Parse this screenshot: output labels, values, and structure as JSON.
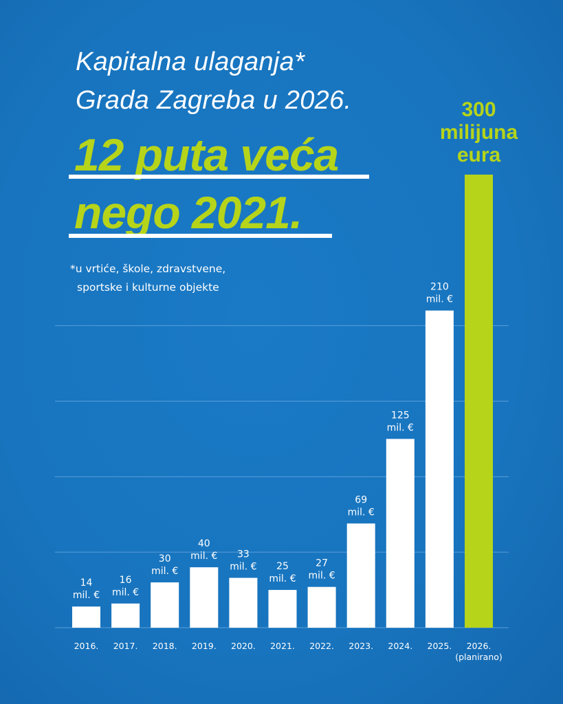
{
  "title_line1": "Kapitalna ulaganja*",
  "title_line2": "Grada Zagreba u 2026.",
  "headline_line1": "12 puta veća",
  "headline_line2": "nego 2021.",
  "footnote_line1": "*u vrtiće, škole, zdravstvene,",
  "footnote_line2": "sportske i kulturne objekte",
  "colors": {
    "background": "#1b76c0",
    "bar": "#ffffff",
    "highlight": "#b6d41a"
  },
  "chart_data": {
    "type": "bar",
    "title": "Kapitalna ulaganja Grada Zagreba",
    "categories": [
      "2016.",
      "2017.",
      "2018.",
      "2019.",
      "2020.",
      "2021.",
      "2022.",
      "2023.",
      "2024.",
      "2025.",
      "2026."
    ],
    "category_notes": [
      "",
      "",
      "",
      "",
      "",
      "",
      "",
      "",
      "",
      "",
      "(planirano)"
    ],
    "values": [
      14,
      16,
      30,
      40,
      33,
      25,
      27,
      69,
      125,
      210,
      300
    ],
    "value_unit": "mil. €",
    "highlight_label": [
      "300",
      "milijuna",
      "eura"
    ],
    "highlight_index": 10,
    "ylim": [
      0,
      300
    ],
    "gridlines": [
      50,
      100,
      150,
      200
    ],
    "grid": true,
    "xlabel": "",
    "ylabel": ""
  }
}
